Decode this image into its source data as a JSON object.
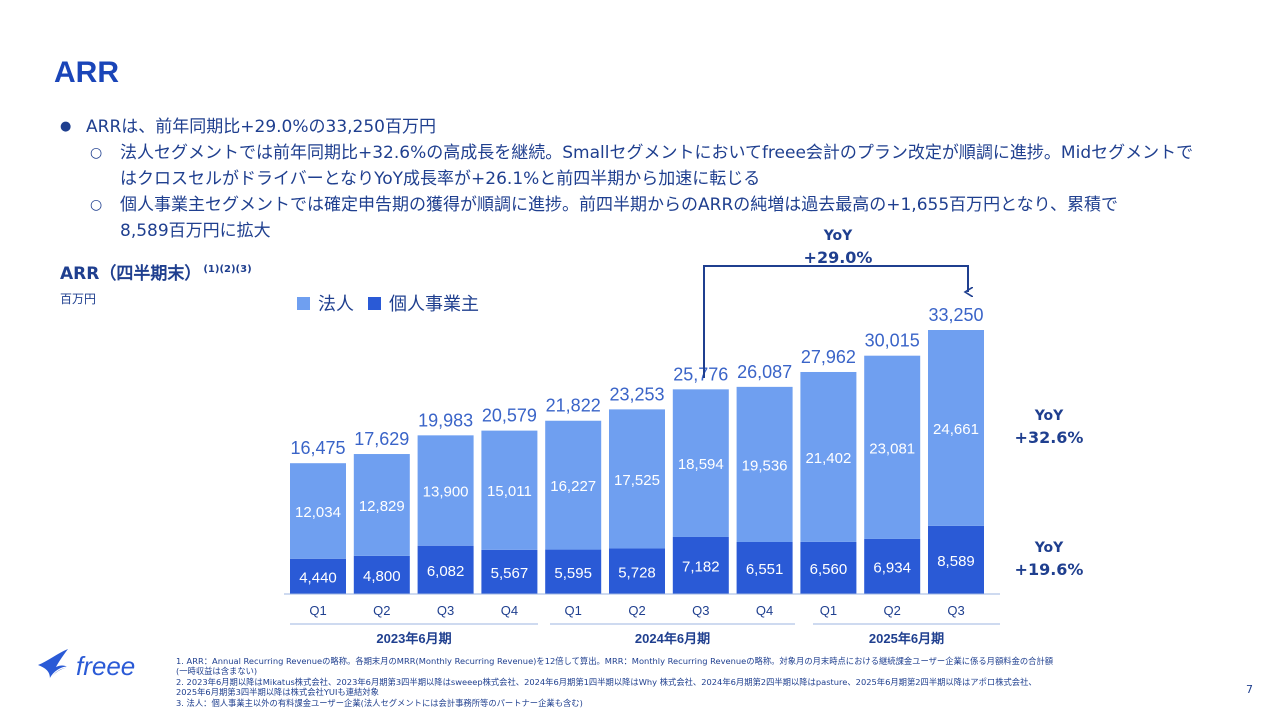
{
  "slide": {
    "title": "ARR",
    "bullet_main": "ARRは、前年同期比+29.0%の33,250百万円",
    "bullet_sub1_line1": "法人セグメントでは前年同期比+32.6%の高成長を継続。Smallセグメントにおいてfreee会計のプラン改定が順調に進捗。Midセグメントで",
    "bullet_sub1_line2": "はクロスセルがドライバーとなりYoY成長率が+26.1%と前四半期から加速に転じる",
    "bullet_sub2_line1": "個人事業主セグメントでは確定申告期の獲得が順調に進捗。前四半期からのARRの純増は過去最高の+1,655百万円となり、累積で",
    "bullet_sub2_line2": "8,589百万円に拡大",
    "page_number": "7"
  },
  "chart_header": {
    "title": "ARR（四半期末）",
    "title_sup": "(1)(2)(3)",
    "unit": "百万円"
  },
  "yoy": {
    "total_label": "YoY",
    "total_value": "+29.0",
    "corp_label": "YoY",
    "corp_value": "+32.6",
    "indiv_label": "YoY",
    "indiv_value": "+19.6",
    "pct": "%"
  },
  "footnotes": {
    "line1": "1. ARR：Annual Recurring Revenueの略称。各期末月のMRR(Monthly Recurring Revenue)を12倍して算出。MRR：Monthly Recurring Revenueの略称。対象月の月末時点における継続課金ユーザー企業に係る月額料金の合計額",
    "line2": "(一時収益は含まない)",
    "line3": "2. 2023年6月期以降はMikatus株式会社、2023年6月期第3四半期以降はsweeep株式会社、2024年6月期第1四半期以降はWhy 株式会社、2024年6月期第2四半期以降はpasture、2025年6月期第2四半期以降はアポロ株式会社、",
    "line4": "2025年6月期第3四半期以降は株式会社YUIも連結対象",
    "line5": "3. 法人：個人事業主以外の有料課金ユーザー企業(法人セグメントには会計事務所等のパートナー企業も含む)"
  },
  "logo": {
    "text": "freee",
    "icon": "freee-bird-icon"
  },
  "colors": {
    "corp": "#6f9ff0",
    "indiv": "#2a5ad6",
    "text": "#1f3f8f",
    "title": "#1a45b8"
  },
  "chart_data": {
    "type": "bar",
    "stacked": true,
    "categories": [
      "Q1",
      "Q2",
      "Q3",
      "Q4",
      "Q1",
      "Q2",
      "Q3",
      "Q4",
      "Q1",
      "Q2",
      "Q3"
    ],
    "groups": [
      {
        "label": "2023年6月期",
        "count": 4
      },
      {
        "label": "2024年6月期",
        "count": 4
      },
      {
        "label": "2025年6月期",
        "count": 3
      }
    ],
    "series": [
      {
        "name": "個人事業主",
        "values": [
          4440,
          4800,
          6082,
          5567,
          5595,
          5728,
          7182,
          6551,
          6560,
          6934,
          8589
        ]
      },
      {
        "name": "法人",
        "values": [
          12034,
          12829,
          13900,
          15011,
          16227,
          17525,
          18594,
          19536,
          21402,
          23081,
          24661
        ]
      }
    ],
    "totals": [
      16475,
      17629,
      19983,
      20579,
      21822,
      23253,
      25776,
      26087,
      27962,
      30015,
      33250
    ],
    "legend": [
      "法人",
      "個人事業主"
    ],
    "legend_position": "top-left"
  }
}
